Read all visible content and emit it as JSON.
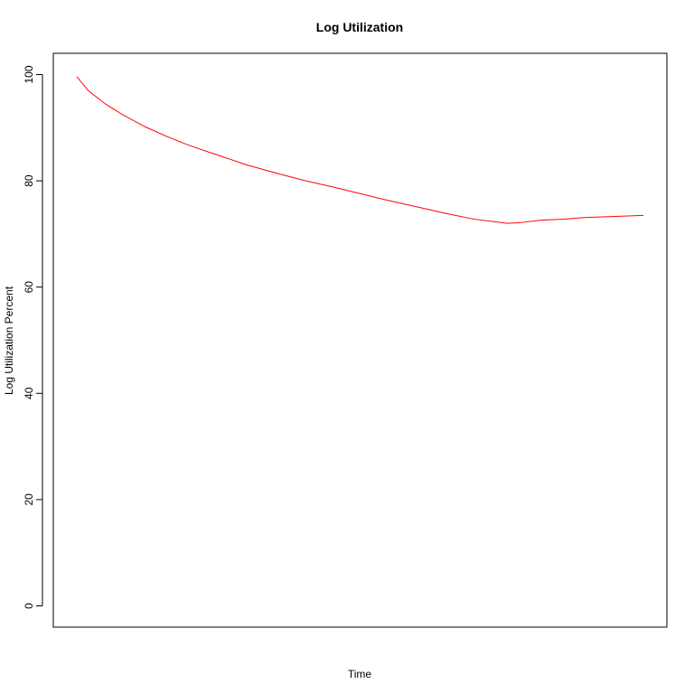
{
  "chart_data": {
    "type": "line",
    "title": "Log Utilization",
    "xlabel": "Time",
    "ylabel": "Log Utilization Percent",
    "ylim": [
      -4,
      104
    ],
    "yticks": [
      0,
      20,
      40,
      60,
      80,
      100
    ],
    "ytick_labels": [
      "0",
      "20",
      "40",
      "60",
      "80",
      "100"
    ],
    "grid": false,
    "legend": "none",
    "series": [
      {
        "color": "#FF0000",
        "points": [
          [
            0.0,
            99.6
          ],
          [
            0.02,
            97.0
          ],
          [
            0.05,
            94.5
          ],
          [
            0.08,
            92.5
          ],
          [
            0.12,
            90.2
          ],
          [
            0.16,
            88.3
          ],
          [
            0.2,
            86.6
          ],
          [
            0.25,
            84.8
          ],
          [
            0.3,
            83.0
          ],
          [
            0.35,
            81.5
          ],
          [
            0.4,
            80.1
          ],
          [
            0.45,
            78.9
          ],
          [
            0.5,
            77.6
          ],
          [
            0.55,
            76.3
          ],
          [
            0.6,
            75.1
          ],
          [
            0.65,
            73.9
          ],
          [
            0.7,
            72.8
          ],
          [
            0.76,
            72.0
          ],
          [
            0.78,
            72.1
          ],
          [
            0.82,
            72.6
          ],
          [
            0.86,
            72.8
          ],
          [
            0.9,
            73.1
          ],
          [
            0.95,
            73.3
          ],
          [
            1.0,
            73.5
          ]
        ]
      }
    ]
  }
}
